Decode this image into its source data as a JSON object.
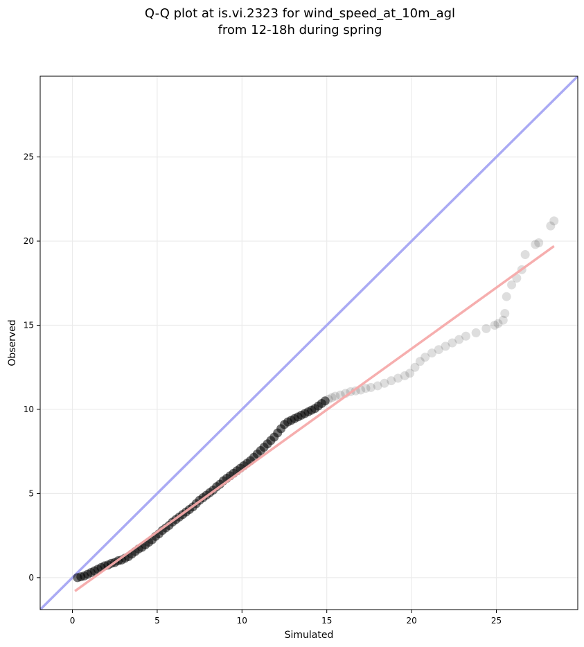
{
  "chart_data": {
    "type": "scatter",
    "title_line1": "Q-Q plot at is.vi.2323 for wind_speed_at_10m_agl",
    "title_line2": "from 12-18h during spring",
    "xlabel": "Simulated",
    "ylabel": "Observed",
    "xlim": [
      -1.9,
      29.8
    ],
    "ylim": [
      -1.9,
      29.8
    ],
    "xticks": [
      0,
      5,
      10,
      15,
      20,
      25
    ],
    "yticks": [
      0,
      5,
      10,
      15,
      20,
      25
    ],
    "grid": true,
    "colors": {
      "points": "#000000",
      "identity_line": "#aaaaf4",
      "fit_line": "#f6aaaa",
      "grid": "#ebebeb"
    },
    "identity_line": {
      "x": [
        -1.9,
        29.8
      ],
      "y": [
        -1.9,
        29.8
      ]
    },
    "fit_line": {
      "x": [
        0.15,
        28.4
      ],
      "y": [
        -0.8,
        19.7
      ]
    },
    "series": [
      {
        "points": [
          [
            0.3,
            0.0
          ],
          [
            0.5,
            0.05
          ],
          [
            0.7,
            0.1
          ],
          [
            0.9,
            0.2
          ],
          [
            1.1,
            0.3
          ],
          [
            1.3,
            0.4
          ],
          [
            1.5,
            0.5
          ],
          [
            1.7,
            0.6
          ],
          [
            1.9,
            0.7
          ],
          [
            2.1,
            0.75
          ],
          [
            2.3,
            0.85
          ],
          [
            2.5,
            0.9
          ],
          [
            2.7,
            1.0
          ],
          [
            2.9,
            1.05
          ],
          [
            3.1,
            1.15
          ],
          [
            3.3,
            1.25
          ],
          [
            3.5,
            1.4
          ],
          [
            3.7,
            1.55
          ],
          [
            3.9,
            1.7
          ],
          [
            4.1,
            1.8
          ],
          [
            4.3,
            1.95
          ],
          [
            4.5,
            2.1
          ],
          [
            4.7,
            2.25
          ],
          [
            4.9,
            2.45
          ],
          [
            5.1,
            2.6
          ],
          [
            5.3,
            2.8
          ],
          [
            5.5,
            2.95
          ],
          [
            5.7,
            3.1
          ],
          [
            5.9,
            3.3
          ],
          [
            6.1,
            3.45
          ],
          [
            6.3,
            3.6
          ],
          [
            6.5,
            3.75
          ],
          [
            6.7,
            3.9
          ],
          [
            6.9,
            4.05
          ],
          [
            7.1,
            4.2
          ],
          [
            7.3,
            4.4
          ],
          [
            7.5,
            4.6
          ],
          [
            7.7,
            4.75
          ],
          [
            7.9,
            4.9
          ],
          [
            8.1,
            5.05
          ],
          [
            8.3,
            5.2
          ],
          [
            8.5,
            5.4
          ],
          [
            8.7,
            5.55
          ],
          [
            8.9,
            5.75
          ],
          [
            9.1,
            5.9
          ],
          [
            9.3,
            6.05
          ],
          [
            9.5,
            6.2
          ],
          [
            9.7,
            6.35
          ],
          [
            9.9,
            6.5
          ],
          [
            10.1,
            6.65
          ],
          [
            10.3,
            6.8
          ],
          [
            10.5,
            6.95
          ],
          [
            10.7,
            7.15
          ],
          [
            10.9,
            7.35
          ],
          [
            11.1,
            7.55
          ],
          [
            11.3,
            7.75
          ],
          [
            11.5,
            7.95
          ],
          [
            11.7,
            8.15
          ],
          [
            11.9,
            8.35
          ],
          [
            12.1,
            8.6
          ],
          [
            12.3,
            8.85
          ],
          [
            12.5,
            9.1
          ],
          [
            12.7,
            9.25
          ],
          [
            12.9,
            9.35
          ],
          [
            13.1,
            9.45
          ],
          [
            13.3,
            9.55
          ],
          [
            13.5,
            9.65
          ],
          [
            13.7,
            9.75
          ],
          [
            13.9,
            9.85
          ],
          [
            14.1,
            9.95
          ],
          [
            14.3,
            10.05
          ],
          [
            14.5,
            10.2
          ],
          [
            14.7,
            10.35
          ],
          [
            14.9,
            10.5
          ],
          [
            15.1,
            10.6
          ],
          [
            15.3,
            10.7
          ],
          [
            15.5,
            10.78
          ],
          [
            15.8,
            10.85
          ],
          [
            16.1,
            10.95
          ],
          [
            16.4,
            11.05
          ],
          [
            16.7,
            11.1
          ],
          [
            17.0,
            11.15
          ],
          [
            17.3,
            11.25
          ],
          [
            17.6,
            11.3
          ],
          [
            18.0,
            11.4
          ],
          [
            18.4,
            11.55
          ],
          [
            18.8,
            11.7
          ],
          [
            19.2,
            11.85
          ],
          [
            19.6,
            12.0
          ],
          [
            19.9,
            12.15
          ],
          [
            20.2,
            12.5
          ],
          [
            20.5,
            12.85
          ],
          [
            20.8,
            13.1
          ],
          [
            21.2,
            13.35
          ],
          [
            21.6,
            13.55
          ],
          [
            22.0,
            13.75
          ],
          [
            22.4,
            13.95
          ],
          [
            22.8,
            14.15
          ],
          [
            23.2,
            14.35
          ],
          [
            23.8,
            14.55
          ],
          [
            24.4,
            14.8
          ],
          [
            24.9,
            15.0
          ],
          [
            25.1,
            15.1
          ],
          [
            25.4,
            15.3
          ],
          [
            25.5,
            15.7
          ],
          [
            25.6,
            16.7
          ],
          [
            25.9,
            17.4
          ],
          [
            26.2,
            17.8
          ],
          [
            26.5,
            18.3
          ],
          [
            26.7,
            19.2
          ],
          [
            27.3,
            19.8
          ],
          [
            27.5,
            19.9
          ],
          [
            28.2,
            20.9
          ],
          [
            28.4,
            21.2
          ]
        ]
      }
    ]
  }
}
